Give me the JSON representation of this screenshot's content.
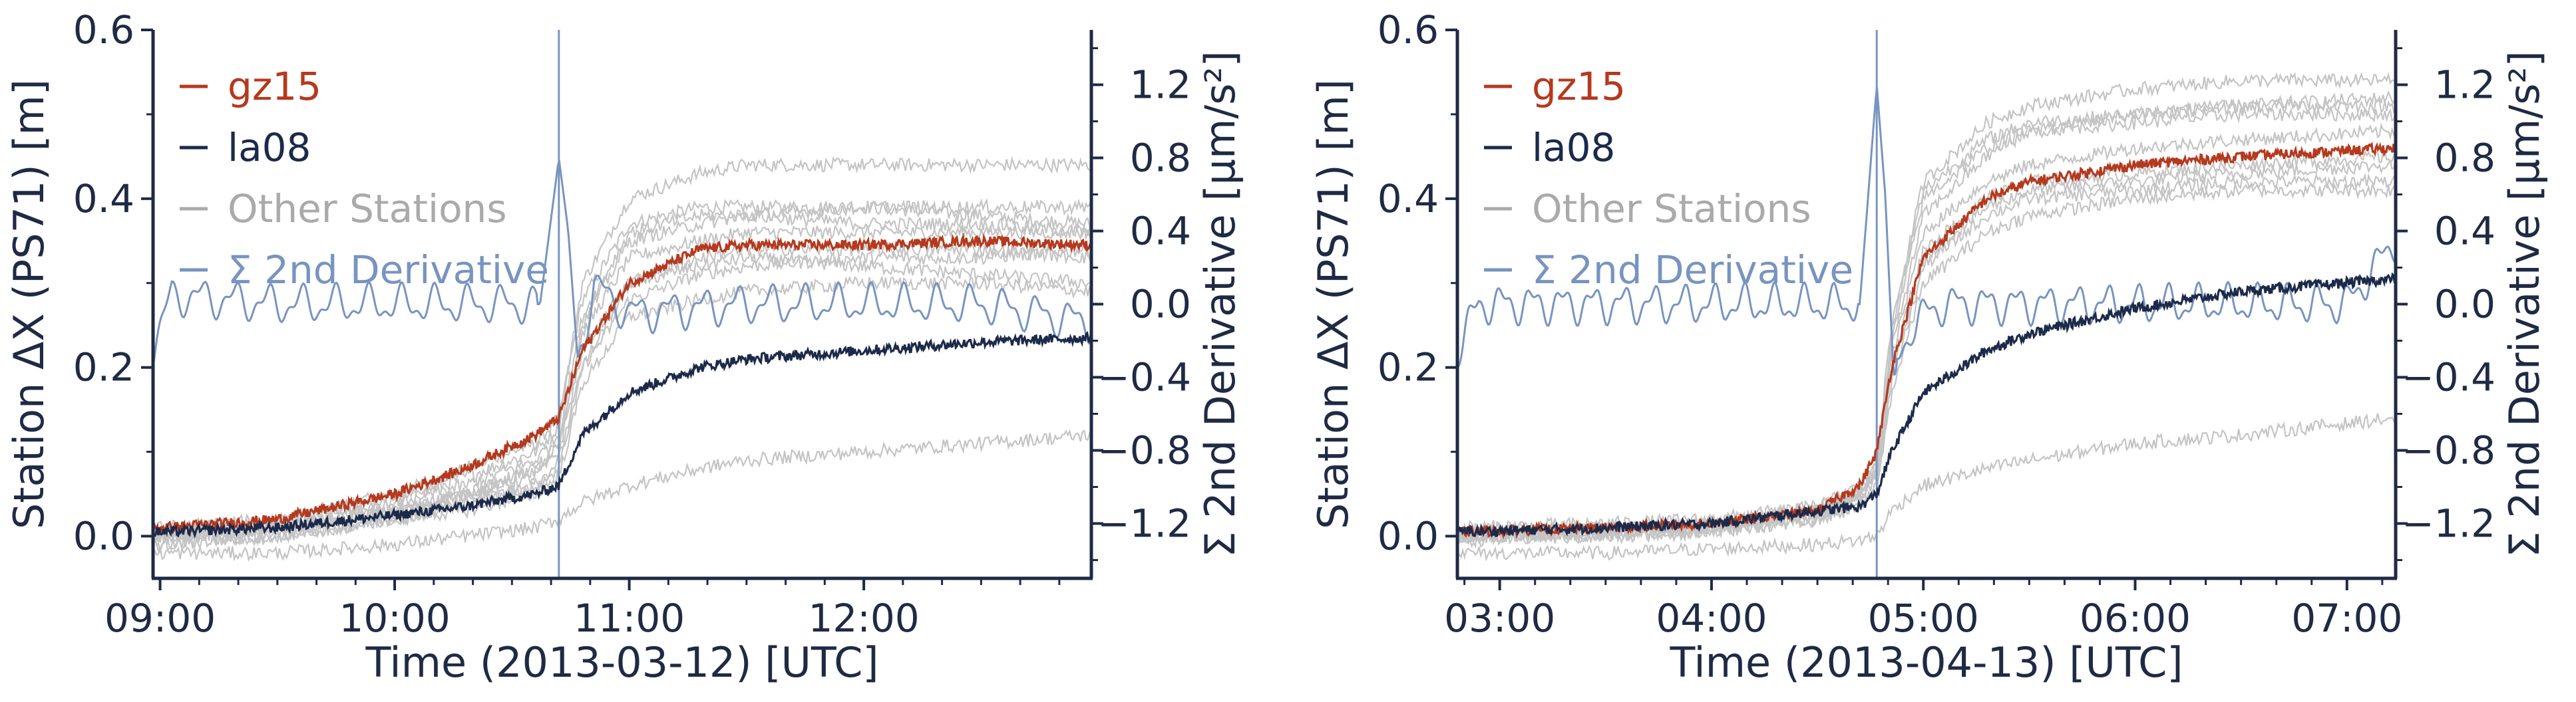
{
  "colors": {
    "axis": "#1f2a44",
    "gz15": "#b5391e",
    "la08": "#1c2a4a",
    "others": "#c4c4c4",
    "derivative": "#7894c0"
  },
  "chart_data": [
    {
      "type": "line",
      "xlabel": "Time (2013-03-12) [UTC]",
      "ylabel": "Station ΔX (PS71) [m]",
      "y2label": "Σ 2nd Derivative [μm/s²]",
      "x_ticks": [
        "09:00",
        "10:00",
        "11:00",
        "12:00"
      ],
      "x_tick_hours": [
        9,
        10,
        11,
        12
      ],
      "xlim": [
        8.97,
        12.97
      ],
      "ylim": [
        -0.05,
        0.6
      ],
      "y_ticks": [
        "0.0",
        "0.2",
        "0.4",
        "0.6"
      ],
      "y_tick_values": [
        0.0,
        0.2,
        0.4,
        0.6
      ],
      "y2lim": [
        -1.5,
        1.5
      ],
      "y2_ticks": [
        "−1.2",
        "−0.8",
        "−0.4",
        "0.0",
        "0.4",
        "0.8",
        "1.2"
      ],
      "y2_tick_values": [
        -1.2,
        -0.8,
        -0.4,
        0.0,
        0.4,
        0.8,
        1.2
      ],
      "event_time": 10.7,
      "legend": {
        "placement": "top-left",
        "entries": [
          "gz15",
          "la08",
          "Other Stations",
          "Σ 2nd Derivative"
        ]
      },
      "series": [
        {
          "name": "gz15",
          "axis": "left",
          "x": [
            9.0,
            9.5,
            10.0,
            10.3,
            10.6,
            10.7,
            10.8,
            11.0,
            11.3,
            11.5,
            12.0,
            12.5,
            12.97
          ],
          "y": [
            0.01,
            0.02,
            0.05,
            0.08,
            0.12,
            0.14,
            0.22,
            0.3,
            0.34,
            0.345,
            0.345,
            0.35,
            0.345
          ]
        },
        {
          "name": "la08",
          "axis": "left",
          "x": [
            9.0,
            9.5,
            10.0,
            10.3,
            10.6,
            10.7,
            10.8,
            11.0,
            11.3,
            11.5,
            12.0,
            12.5,
            12.97
          ],
          "y": [
            0.005,
            0.01,
            0.025,
            0.035,
            0.05,
            0.06,
            0.12,
            0.17,
            0.2,
            0.21,
            0.22,
            0.23,
            0.235
          ]
        },
        {
          "name": "Other Stations",
          "axis": "left",
          "x": [
            9.0,
            9.5,
            10.0,
            10.3,
            10.6,
            10.7,
            10.8,
            11.0,
            11.3,
            11.5,
            12.0,
            12.5,
            12.97
          ],
          "curves": [
            [
              0.0,
              0.02,
              0.05,
              0.08,
              0.11,
              0.14,
              0.28,
              0.37,
              0.39,
              0.39,
              0.39,
              0.38,
              0.37
            ],
            [
              0.005,
              0.015,
              0.04,
              0.07,
              0.1,
              0.13,
              0.3,
              0.4,
              0.43,
              0.44,
              0.44,
              0.44,
              0.44
            ],
            [
              0.0,
              0.01,
              0.03,
              0.05,
              0.08,
              0.11,
              0.24,
              0.33,
              0.35,
              0.36,
              0.36,
              0.36,
              0.36
            ],
            [
              -0.01,
              0.0,
              0.02,
              0.04,
              0.06,
              0.09,
              0.2,
              0.28,
              0.31,
              0.32,
              0.33,
              0.33,
              0.34
            ],
            [
              0.0,
              0.01,
              0.03,
              0.05,
              0.07,
              0.1,
              0.22,
              0.3,
              0.32,
              0.33,
              0.32,
              0.31,
              0.3
            ],
            [
              0.01,
              0.02,
              0.04,
              0.06,
              0.09,
              0.12,
              0.26,
              0.36,
              0.38,
              0.38,
              0.37,
              0.37,
              0.36
            ],
            [
              -0.01,
              0.0,
              0.02,
              0.03,
              0.05,
              0.07,
              0.18,
              0.26,
              0.28,
              0.29,
              0.3,
              0.3,
              0.29
            ],
            [
              0.0,
              0.01,
              0.03,
              0.05,
              0.08,
              0.11,
              0.25,
              0.35,
              0.37,
              0.38,
              0.39,
              0.39,
              0.39
            ],
            [
              0.0,
              0.0,
              0.02,
              0.04,
              0.06,
              0.08,
              0.2,
              0.3,
              0.33,
              0.34,
              0.34,
              0.34,
              0.33
            ],
            [
              -0.02,
              -0.02,
              -0.01,
              0.0,
              0.01,
              0.02,
              0.04,
              0.06,
              0.08,
              0.09,
              0.1,
              0.11,
              0.12
            ]
          ]
        },
        {
          "name": "Σ 2nd Derivative",
          "axis": "right",
          "x": [
            8.97,
            9.05,
            9.5,
            10.0,
            10.5,
            10.62,
            10.66,
            10.7,
            10.74,
            10.78,
            10.85,
            11.0,
            11.5,
            12.0,
            12.5,
            12.97
          ],
          "y": [
            -0.25,
            0.05,
            0.0,
            0.0,
            0.0,
            0.0,
            0.4,
            0.8,
            0.4,
            -0.3,
            0.1,
            -0.05,
            0.0,
            0.0,
            0.0,
            -0.1
          ]
        }
      ]
    },
    {
      "type": "line",
      "xlabel": "Time (2013-04-13) [UTC]",
      "ylabel": "Station ΔX (PS71) [m]",
      "y2label": "Σ 2nd Derivative [μm/s²]",
      "x_ticks": [
        "03:00",
        "04:00",
        "05:00",
        "06:00",
        "07:00"
      ],
      "x_tick_hours": [
        3,
        4,
        5,
        6,
        7
      ],
      "xlim": [
        2.8,
        7.23
      ],
      "ylim": [
        -0.05,
        0.6
      ],
      "y_ticks": [
        "0.0",
        "0.2",
        "0.4",
        "0.6"
      ],
      "y_tick_values": [
        0.0,
        0.2,
        0.4,
        0.6
      ],
      "y2lim": [
        -1.5,
        1.5
      ],
      "y2_ticks": [
        "−1.2",
        "−0.8",
        "−0.4",
        "0.0",
        "0.4",
        "0.8",
        "1.2"
      ],
      "y2_tick_values": [
        -1.2,
        -0.8,
        -0.4,
        0.0,
        0.4,
        0.8,
        1.2
      ],
      "event_time": 4.78,
      "legend": {
        "placement": "top-left",
        "entries": [
          "gz15",
          "la08",
          "Other Stations",
          "Σ 2nd Derivative"
        ]
      },
      "series": [
        {
          "name": "gz15",
          "axis": "left",
          "x": [
            2.8,
            3.5,
            4.0,
            4.5,
            4.7,
            4.78,
            4.85,
            5.0,
            5.3,
            5.5,
            6.0,
            6.5,
            7.23
          ],
          "y": [
            0.005,
            0.01,
            0.015,
            0.03,
            0.06,
            0.1,
            0.2,
            0.33,
            0.4,
            0.42,
            0.44,
            0.45,
            0.46
          ]
        },
        {
          "name": "la08",
          "axis": "left",
          "x": [
            2.8,
            3.5,
            4.0,
            4.5,
            4.7,
            4.78,
            4.85,
            5.0,
            5.3,
            5.5,
            6.0,
            6.5,
            7.23
          ],
          "y": [
            0.005,
            0.01,
            0.015,
            0.03,
            0.035,
            0.05,
            0.1,
            0.17,
            0.22,
            0.24,
            0.27,
            0.29,
            0.305
          ]
        },
        {
          "name": "Other Stations",
          "axis": "left",
          "x": [
            2.8,
            3.5,
            4.0,
            4.5,
            4.7,
            4.78,
            4.85,
            5.0,
            5.3,
            5.5,
            6.0,
            6.5,
            7.23
          ],
          "curves": [
            [
              0.0,
              0.005,
              0.01,
              0.03,
              0.05,
              0.08,
              0.22,
              0.38,
              0.45,
              0.48,
              0.5,
              0.51,
              0.52
            ],
            [
              0.01,
              0.015,
              0.02,
              0.035,
              0.06,
              0.09,
              0.25,
              0.42,
              0.49,
              0.51,
              0.53,
              0.54,
              0.54
            ],
            [
              0.0,
              0.005,
              0.01,
              0.025,
              0.045,
              0.07,
              0.2,
              0.34,
              0.4,
              0.42,
              0.43,
              0.44,
              0.45
            ],
            [
              -0.005,
              0.0,
              0.005,
              0.02,
              0.04,
              0.06,
              0.18,
              0.32,
              0.38,
              0.4,
              0.41,
              0.42,
              0.42
            ],
            [
              0.0,
              0.005,
              0.01,
              0.03,
              0.05,
              0.08,
              0.23,
              0.4,
              0.46,
              0.48,
              0.49,
              0.5,
              0.5
            ],
            [
              0.005,
              0.01,
              0.015,
              0.03,
              0.05,
              0.075,
              0.21,
              0.36,
              0.42,
              0.44,
              0.46,
              0.47,
              0.48
            ],
            [
              0.0,
              0.005,
              0.01,
              0.025,
              0.045,
              0.07,
              0.19,
              0.33,
              0.39,
              0.41,
              0.42,
              0.43,
              0.44
            ],
            [
              0.0,
              0.0,
              0.005,
              0.02,
              0.035,
              0.055,
              0.17,
              0.3,
              0.36,
              0.38,
              0.4,
              0.41,
              0.41
            ],
            [
              0.005,
              0.01,
              0.015,
              0.035,
              0.055,
              0.085,
              0.24,
              0.41,
              0.47,
              0.49,
              0.5,
              0.51,
              0.51
            ],
            [
              -0.02,
              -0.02,
              -0.015,
              -0.01,
              -0.005,
              0.0,
              0.03,
              0.06,
              0.08,
              0.09,
              0.11,
              0.12,
              0.14
            ]
          ]
        },
        {
          "name": "Σ 2nd Derivative",
          "axis": "right",
          "x": [
            2.8,
            2.9,
            3.5,
            4.0,
            4.5,
            4.7,
            4.74,
            4.78,
            4.82,
            4.86,
            4.95,
            5.1,
            5.5,
            6.0,
            6.5,
            7.0,
            7.23
          ],
          "y": [
            -0.25,
            0.0,
            0.0,
            0.0,
            0.0,
            0.0,
            0.6,
            1.2,
            0.6,
            -0.4,
            -0.1,
            0.0,
            0.0,
            0.0,
            0.0,
            0.0,
            0.35
          ]
        }
      ]
    }
  ]
}
